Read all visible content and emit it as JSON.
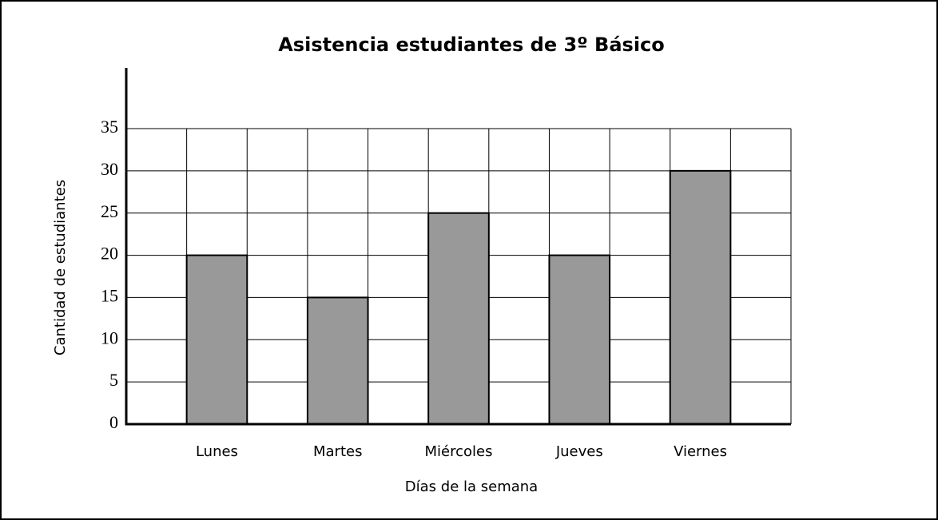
{
  "chart_data": {
    "type": "bar",
    "title": "Asistencia estudiantes de 3º Básico",
    "x_label": "Días de la semana",
    "y_label": "Cantidad de estudiantes",
    "categories": [
      "Lunes",
      "Martes",
      "Miércoles",
      "Jueves",
      "Viernes"
    ],
    "values": [
      20,
      15,
      25,
      20,
      30
    ],
    "color": "#999999",
    "ylim": [
      0,
      35
    ],
    "yticks": [
      0,
      5,
      10,
      15,
      20,
      25,
      30,
      35
    ],
    "grid": true
  }
}
